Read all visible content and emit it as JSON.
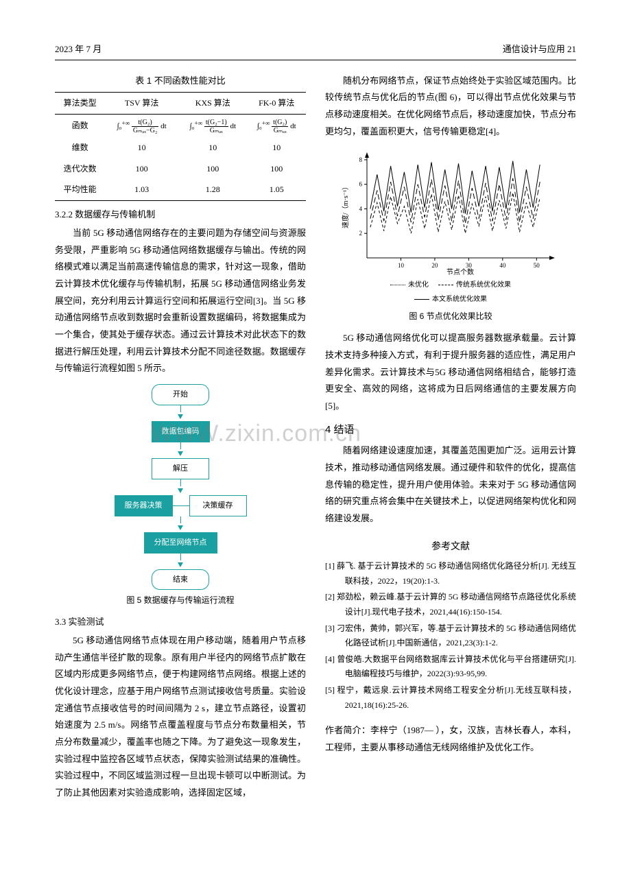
{
  "header": {
    "left": "2023 年 7 月",
    "right": "通信设计与应用  21"
  },
  "table": {
    "caption": "表 1  不同函数性能对比",
    "cols": [
      "算法类型",
      "TSV 算法",
      "KXS 算法",
      "FK-0 算法"
    ],
    "fn_row_label": "函数",
    "fn_cells": {
      "tsv": {
        "num": "t(G₂)",
        "den": "Gₘₐₓ−G₂"
      },
      "kxs": {
        "num": "t(G₂−1)",
        "den": "Gₘₐₓ"
      },
      "fk": {
        "num": "t(G₂)",
        "den": "Gₘₐₓ"
      }
    },
    "rows": [
      [
        "维数",
        "10",
        "10",
        "10"
      ],
      [
        "迭代次数",
        "100",
        "100",
        "100"
      ],
      [
        "平均性能",
        "1.03",
        "1.28",
        "1.05"
      ]
    ]
  },
  "sec322": {
    "heading": "3.2.2  数据缓存与传输机制",
    "para": "当前 5G 移动通信网络存在的主要问题为存储空间与资源服务受限，严重影响 5G 移动通信网络数据缓存与输出。传统的网络模式难以满足当前高速传输信息的需求，针对这一现象，借助云计算技术优化缓存与传输机制，拓展 5G 移动通信网络业务发展空间，充分利用云计算运行空间和拓展运行空间[3]。当 5G 移动通信网络节点收到数据时会重新设置数据编码，将数据集成为一个集合，使其处于缓存状态。通过云计算技术对此状态下的数据进行解压处理，利用云计算技术分配不同途径数据。数据缓存与传输运行流程如图 5 所示。"
  },
  "flow": {
    "n1": "开始",
    "n2": "数据包编码",
    "n3": "解压",
    "n4": "服务器决策",
    "side": "决策缓存",
    "n5": "分配至网络节点",
    "n6": "结束",
    "caption": "图 5  数据缓存与传输运行流程",
    "node_color": "#1aa0a0"
  },
  "sec33": {
    "heading": "3.3  实验测试",
    "para": "5G 移动通信网络节点体现在用户移动端，随着用户节点移动产生通信半径扩散的现象。原有用户半径内的网络节点扩散在区域内形成更多网络节点，便于构建网络节点网络。根据上述的优化设计理念，应基于用户网络节点测试接收信号质量。实验设定通信节点接收信号的时间间隔为 2 s，建立节点路径，设置初始速度为 2.5 m/s。网络节点覆盖程度与节点分布数量相关，节点分布数量减少，覆盖率也随之下降。为了避免这一现象发生，实验过程中监控各区域节点状态，保障实验测试结果的准确性。实验过程中，不同区域监测过程一旦出现卡顿可以中断测试。为了防止其他因素对实验造成影响，选择固定区域，"
  },
  "right_top": {
    "para": "随机分布网络节点，保证节点始终处于实验区域范围内。比较传统节点与优化后的节点(图 6)，可以得出节点优化效果与节点移动速度相关。在优化网络节点后，移动速度加快，节点分布更均匀，覆盖面积更大，信号传输更稳定[4]。"
  },
  "fig6": {
    "caption": "图 6  节点优化效果比较",
    "xlabel": "节点个数",
    "ylabel": "速度/（m·s⁻¹）",
    "xlim": [
      0,
      55
    ],
    "ylim": [
      0,
      8.5
    ],
    "xticks": [
      10,
      20,
      30,
      40,
      50
    ],
    "yticks": [
      2,
      4,
      6,
      8
    ],
    "axis_color": "#000",
    "grid_color": "#e0e0e0",
    "background_color": "#ffffff",
    "series": [
      {
        "name": "未优化",
        "dash": "4 3",
        "color": "#000",
        "x": [
          1,
          3,
          5,
          7,
          9,
          11,
          13,
          15,
          17,
          19,
          21,
          23,
          25,
          27,
          29,
          31,
          33,
          35,
          37,
          39,
          41,
          43,
          45,
          47,
          49,
          51
        ],
        "y": [
          2.5,
          4.5,
          2.2,
          5.0,
          2.8,
          4.2,
          2.0,
          4.8,
          2.4,
          5.2,
          2.1,
          4.6,
          2.3,
          5.1,
          2.0,
          4.4,
          2.6,
          5.0,
          2.2,
          4.7,
          2.4,
          5.3,
          2.1,
          4.5,
          2.5,
          4.9
        ]
      },
      {
        "name": "传统系统优化效果",
        "dash": "8 4",
        "color": "#000",
        "x": [
          1,
          3,
          5,
          7,
          9,
          11,
          13,
          15,
          17,
          19,
          21,
          23,
          25,
          27,
          29,
          31,
          33,
          35,
          37,
          39,
          41,
          43,
          45,
          47,
          49,
          51
        ],
        "y": [
          3.2,
          5.5,
          3.0,
          6.2,
          3.4,
          5.8,
          2.9,
          6.0,
          3.3,
          6.4,
          3.1,
          5.9,
          3.0,
          6.3,
          2.8,
          5.7,
          3.2,
          6.1,
          3.0,
          6.0,
          3.1,
          6.5,
          2.9,
          5.8,
          3.2,
          6.2
        ]
      },
      {
        "name": "本文系统优化效果",
        "dash": "",
        "color": "#000",
        "x": [
          1,
          3,
          5,
          7,
          9,
          11,
          13,
          15,
          17,
          19,
          21,
          23,
          25,
          27,
          29,
          31,
          33,
          35,
          37,
          39,
          41,
          43,
          45,
          47,
          49,
          51
        ],
        "y": [
          4.0,
          6.8,
          3.8,
          7.5,
          4.2,
          7.0,
          3.7,
          7.6,
          4.1,
          7.8,
          3.9,
          7.2,
          4.0,
          7.7,
          3.6,
          7.1,
          4.2,
          7.5,
          3.8,
          7.4,
          4.0,
          7.9,
          3.7,
          7.2,
          4.1,
          7.6
        ]
      }
    ],
    "legend": [
      "未优化",
      "传统系统优化效果",
      "本文系统优化效果"
    ]
  },
  "right_mid": {
    "para": "5G 移动通信网络优化可以提高服务器数据承载量。云计算技术支持多种接入方式，有利于提升服务器的适应性，满足用户差异化需求。云计算技术与5G 移动通信网络相结合，能够打造更安全、高效的网络，这将成为日后网络通信的主要发展方向[5]。"
  },
  "sec4": {
    "heading": "4  结语",
    "para": "随着网络建设速度加速，其覆盖范围更加广泛。运用云计算技术，推动移动通信网络发展。通过硬件和软件的优化，提高信息传输的稳定性，提升用户使用体验。未来对于 5G 移动通信网络的研究重点将会集中在关键技术上，以促进网络架构优化和网络建设发展。"
  },
  "refs": {
    "heading": "参考文献",
    "items": [
      "[1]  薛飞. 基于云计算技术的 5G 移动通信网络优化路径分析[J]. 无线互联科技，2022，19(20):1-3.",
      "[2]  郑劲松，赖云峰.基于云计算的 5G 移动通信网络节点路径优化系统设计[J].现代电子技术，2021,44(16):150-154.",
      "[3]  刁宏伟，黄帅，郭兴军，等.基于云计算技术的 5G 移动通信网络优化路径试析[J].中国新通信，2021,23(3):1-2.",
      "[4]  曾俊皓.大数据平台网络数据库云计算技术优化与平台搭建研究[J].电脑编程技巧与维护，2022(3):93-95,99.",
      "[5]  程宁，戴远泉.云计算技术网络工程安全分析[J].无线互联科技，2021,18(16):25-26."
    ]
  },
  "author": {
    "para": "作者简介：李梓宁（1987— ），女，汉族，吉林长春人，本科，工程师，主要从事移动通信无线网络维护及优化工作。"
  },
  "watermark": "WWW.zixin.com.cn"
}
